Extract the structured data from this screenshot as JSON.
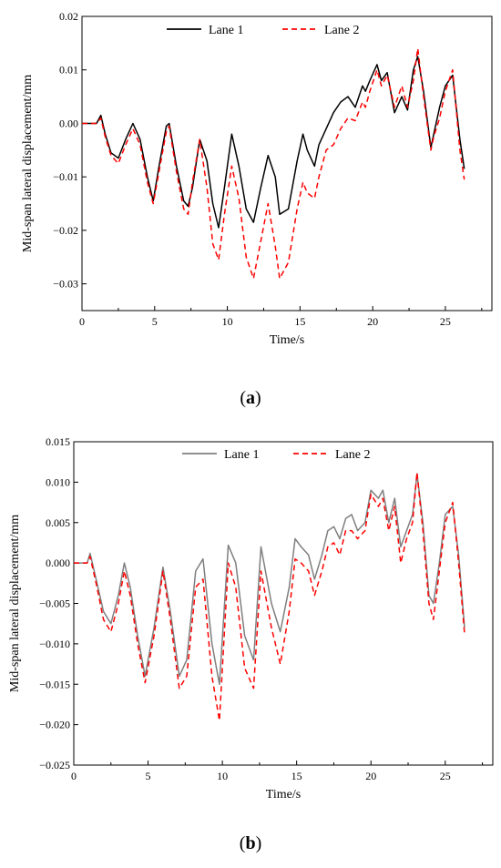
{
  "chart_data": [
    {
      "type": "line",
      "panel_label": "a",
      "xlabel": "Time/s",
      "ylabel": "Mid-span lateral displacement/mm",
      "xlim": [
        0,
        28.2
      ],
      "ylim": [
        -0.035,
        0.02
      ],
      "xticks": [
        0,
        5,
        10,
        15,
        20,
        25
      ],
      "yticks": [
        -0.03,
        -0.02,
        -0.01,
        0.0,
        0.01,
        0.02
      ],
      "ytick_labels": [
        "−0.03",
        "−0.02",
        "−0.01",
        "0.00",
        "0.01",
        "0.02"
      ],
      "legend_position": "top",
      "series": [
        {
          "name": "Lane 1",
          "color": "#000000",
          "style": "solid",
          "x": [
            0,
            1.0,
            1.3,
            1.6,
            2.0,
            2.5,
            3.0,
            3.5,
            4.0,
            4.5,
            4.9,
            5.3,
            5.8,
            6.0,
            6.5,
            7.0,
            7.3,
            7.6,
            8.1,
            8.6,
            9.0,
            9.4,
            9.8,
            10.3,
            10.8,
            11.3,
            11.8,
            12.3,
            12.8,
            13.3,
            13.6,
            14.2,
            14.8,
            15.2,
            15.5,
            16.0,
            16.3,
            16.8,
            17.3,
            17.8,
            18.3,
            18.8,
            19.3,
            19.5,
            19.8,
            20.3,
            20.6,
            21.0,
            21.5,
            22.0,
            22.4,
            22.8,
            23.1,
            23.5,
            24.0,
            24.2,
            24.6,
            25.0,
            25.5,
            26.0,
            26.3
          ],
          "y": [
            0.0,
            0.0,
            0.0015,
            -0.002,
            -0.0055,
            -0.0065,
            -0.003,
            0.0,
            -0.003,
            -0.01,
            -0.0145,
            -0.008,
            -0.0005,
            0.0,
            -0.008,
            -0.0145,
            -0.0155,
            -0.012,
            -0.003,
            -0.007,
            -0.015,
            -0.0195,
            -0.012,
            -0.002,
            -0.008,
            -0.016,
            -0.0185,
            -0.012,
            -0.006,
            -0.01,
            -0.017,
            -0.016,
            -0.007,
            -0.002,
            -0.005,
            -0.008,
            -0.004,
            -0.001,
            0.002,
            0.004,
            0.005,
            0.003,
            0.007,
            0.006,
            0.008,
            0.011,
            0.008,
            0.0095,
            0.002,
            0.005,
            0.0025,
            0.01,
            0.0125,
            0.006,
            -0.0045,
            -0.002,
            0.003,
            0.007,
            0.009,
            -0.003,
            -0.0085
          ]
        },
        {
          "name": "Lane 2",
          "color": "#ff0000",
          "style": "dashed",
          "x": [
            0,
            1.0,
            1.3,
            1.6,
            2.0,
            2.5,
            3.0,
            3.5,
            4.0,
            4.5,
            4.9,
            5.3,
            5.8,
            6.0,
            6.5,
            7.0,
            7.3,
            7.6,
            8.1,
            8.6,
            9.0,
            9.4,
            9.8,
            10.3,
            10.8,
            11.3,
            11.8,
            12.3,
            12.8,
            13.3,
            13.6,
            14.2,
            14.8,
            15.2,
            15.5,
            16.0,
            16.3,
            16.8,
            17.3,
            17.8,
            18.3,
            18.8,
            19.3,
            19.5,
            19.8,
            20.3,
            20.6,
            21.0,
            21.5,
            22.0,
            22.4,
            22.8,
            23.1,
            23.5,
            24.0,
            24.2,
            24.6,
            25.0,
            25.5,
            26.0,
            26.3
          ],
          "y": [
            0.0,
            0.0,
            0.001,
            -0.0025,
            -0.006,
            -0.0075,
            -0.004,
            -0.001,
            -0.004,
            -0.011,
            -0.015,
            -0.009,
            -0.0015,
            -0.0005,
            -0.009,
            -0.016,
            -0.017,
            -0.011,
            -0.003,
            -0.012,
            -0.0225,
            -0.0255,
            -0.017,
            -0.008,
            -0.014,
            -0.025,
            -0.029,
            -0.022,
            -0.015,
            -0.023,
            -0.029,
            -0.026,
            -0.016,
            -0.011,
            -0.013,
            -0.014,
            -0.01,
            -0.005,
            -0.004,
            -0.001,
            0.001,
            0.0005,
            0.004,
            0.003,
            0.006,
            0.01,
            0.007,
            0.009,
            0.003,
            0.007,
            0.003,
            0.008,
            0.014,
            0.005,
            -0.005,
            -0.0025,
            0.001,
            0.006,
            0.01,
            -0.005,
            -0.0105
          ]
        }
      ]
    },
    {
      "type": "line",
      "panel_label": "b",
      "xlabel": "Time/s",
      "ylabel": "Mid-span lateral displacement/mm",
      "xlim": [
        0,
        28.2
      ],
      "ylim": [
        -0.025,
        0.015
      ],
      "xticks": [
        0,
        5,
        10,
        15,
        20,
        25
      ],
      "yticks": [
        -0.025,
        -0.02,
        -0.015,
        -0.01,
        -0.005,
        0.0,
        0.005,
        0.01,
        0.015
      ],
      "ytick_labels": [
        "−0.025",
        "−0.020",
        "−0.015",
        "−0.010",
        "−0.005",
        "0.000",
        "0.005",
        "0.010",
        "0.015"
      ],
      "legend_position": "top",
      "series": [
        {
          "name": "Lane 1",
          "color": "#7f7f7f",
          "style": "solid",
          "x": [
            0,
            0.9,
            1.1,
            1.5,
            2.0,
            2.5,
            3.0,
            3.4,
            3.8,
            4.3,
            4.8,
            5.4,
            6.0,
            6.5,
            7.1,
            7.6,
            8.2,
            8.7,
            9.3,
            9.8,
            10.4,
            10.9,
            11.5,
            12.1,
            12.6,
            13.3,
            13.9,
            14.5,
            14.9,
            15.3,
            15.8,
            16.2,
            16.7,
            17.1,
            17.5,
            17.9,
            18.3,
            18.7,
            19.1,
            19.6,
            20.0,
            20.5,
            20.8,
            21.2,
            21.6,
            22.0,
            22.4,
            22.8,
            23.1,
            23.5,
            23.9,
            24.2,
            24.6,
            25.0,
            25.5,
            25.9,
            26.3
          ],
          "y": [
            0.0,
            0.0,
            0.0012,
            -0.002,
            -0.006,
            -0.0075,
            -0.004,
            0.0,
            -0.003,
            -0.009,
            -0.014,
            -0.008,
            -0.0005,
            -0.006,
            -0.014,
            -0.012,
            -0.001,
            0.0005,
            -0.01,
            -0.015,
            0.0022,
            0.0,
            -0.009,
            -0.012,
            0.002,
            -0.005,
            -0.0085,
            -0.003,
            0.003,
            0.002,
            0.001,
            -0.002,
            0.001,
            0.004,
            0.0045,
            0.003,
            0.0055,
            0.006,
            0.004,
            0.005,
            0.009,
            0.008,
            0.009,
            0.005,
            0.008,
            0.002,
            0.004,
            0.006,
            0.011,
            0.005,
            -0.004,
            -0.005,
            0.0,
            0.006,
            0.007,
            0.001,
            -0.008
          ]
        },
        {
          "name": "Lane 2",
          "color": "#ff0000",
          "style": "dashed",
          "x": [
            0,
            0.9,
            1.1,
            1.5,
            2.0,
            2.5,
            3.0,
            3.4,
            3.8,
            4.3,
            4.8,
            5.4,
            6.0,
            6.5,
            7.1,
            7.6,
            8.2,
            8.7,
            9.3,
            9.8,
            10.4,
            10.9,
            11.5,
            12.1,
            12.6,
            13.3,
            13.9,
            14.5,
            14.9,
            15.3,
            15.8,
            16.2,
            16.7,
            17.1,
            17.5,
            17.9,
            18.3,
            18.7,
            19.1,
            19.6,
            20.0,
            20.5,
            20.8,
            21.2,
            21.6,
            22.0,
            22.4,
            22.8,
            23.1,
            23.5,
            23.9,
            24.2,
            24.6,
            25.0,
            25.5,
            25.9,
            26.3
          ],
          "y": [
            0.0,
            0.0,
            0.0008,
            -0.0025,
            -0.007,
            -0.0085,
            -0.005,
            -0.001,
            -0.004,
            -0.01,
            -0.0148,
            -0.009,
            -0.001,
            -0.007,
            -0.0155,
            -0.014,
            -0.003,
            -0.002,
            -0.014,
            -0.0195,
            0.0,
            -0.003,
            -0.013,
            -0.0155,
            -0.001,
            -0.008,
            -0.0125,
            -0.006,
            0.0005,
            0.0,
            -0.001,
            -0.004,
            -0.001,
            0.002,
            0.0025,
            0.001,
            0.004,
            0.004,
            0.003,
            0.004,
            0.0085,
            0.007,
            0.008,
            0.004,
            0.007,
            0.0,
            0.003,
            0.005,
            0.0112,
            0.004,
            -0.005,
            -0.007,
            -0.001,
            0.005,
            0.0075,
            0.0,
            -0.0088
          ]
        }
      ]
    }
  ]
}
